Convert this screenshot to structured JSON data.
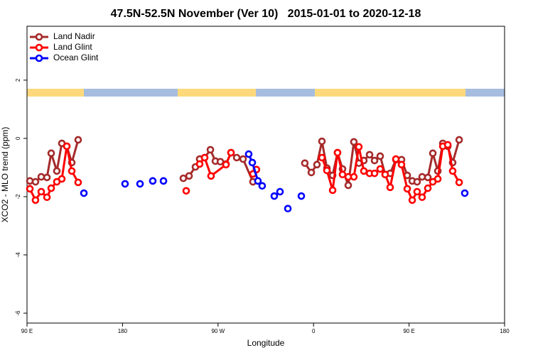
{
  "chart_data": {
    "type": "line",
    "title": "47.5N-52.5N November (Ver 10)   2015-01-01 to 2020-12-18",
    "xlabel": "Longitude",
    "ylabel": "XCO2 - MLO trend (ppm)",
    "xlim": [
      90,
      540
    ],
    "ylim": [
      -6.34,
      3.85
    ],
    "xticks": [
      {
        "value": 90,
        "label": "90 E"
      },
      {
        "value": 180,
        "label": "180"
      },
      {
        "value": 270,
        "label": "90 W"
      },
      {
        "value": 360,
        "label": "0"
      },
      {
        "value": 450,
        "label": "90 E"
      },
      {
        "value": 540,
        "label": "180"
      }
    ],
    "yticks": [
      2,
      0,
      -2,
      -4,
      -6
    ],
    "legend": "top-left",
    "series": [
      {
        "name": "Land Nadir",
        "color": "#a52a2a",
        "x": [
          92.7,
          98.0,
          103.4,
          108.8,
          112.8,
          118.1,
          122.8,
          127.5,
          132.2,
          138.2,
          null,
          237.3,
          242.7,
          248.7,
          252.7,
          257.4,
          262.8,
          267.5,
          272.2,
          277.5,
          282.2,
          287.6,
          293.6,
          302.9,
          null,
          351.8,
          357.9,
          363.2,
          367.9,
          372.6,
          378.0,
          382.6,
          387.3,
          392.7,
          398.0,
          402.7,
          407.4,
          412.8,
          417.5,
          422.8,
          427.5,
          432.2,
          437.6,
          442.9,
          448.3,
          453.0,
          457.6,
          462.3,
          467.7,
          472.4,
          477.1,
          481.8,
          486.5,
          491.1,
          497.2
        ],
        "values": [
          -1.46,
          -1.49,
          -1.32,
          -1.34,
          -0.51,
          -1.12,
          -0.17,
          -0.27,
          -0.83,
          -0.05,
          null,
          -1.37,
          -1.29,
          -0.98,
          -0.71,
          -0.66,
          -0.39,
          -0.78,
          -0.8,
          -0.88,
          -0.49,
          -0.66,
          -0.71,
          -1.49,
          null,
          -0.85,
          -1.17,
          -0.9,
          -0.1,
          -1.02,
          -1.27,
          -0.49,
          -1.05,
          -1.61,
          -0.12,
          -0.85,
          -0.76,
          -0.56,
          -0.76,
          -0.61,
          -1.24,
          -1.2,
          -0.73,
          -0.73,
          -1.27,
          -1.46,
          -1.49,
          -1.32,
          -1.34,
          -0.51,
          -1.12,
          -0.17,
          -0.27,
          -0.83,
          -0.05
        ]
      },
      {
        "name": "Land Glint",
        "color": "#ff0000",
        "x": [
          92.7,
          98.0,
          103.4,
          108.8,
          112.8,
          118.1,
          122.8,
          127.5,
          132.2,
          138.2,
          null,
          240.0,
          null,
          252.7,
          257.4,
          263.4,
          277.5,
          282.2,
          null,
          302.9,
          306.2,
          null,
          367.9,
          372.6,
          378.0,
          382.6,
          387.3,
          392.7,
          398.0,
          402.7,
          407.4,
          412.8,
          417.5,
          422.8,
          427.5,
          432.2,
          437.6,
          442.9,
          448.3,
          453.0,
          457.6,
          462.3,
          467.7,
          472.4,
          477.1,
          481.8,
          486.5,
          491.1,
          497.2
        ],
        "values": [
          -1.73,
          -2.12,
          -1.83,
          -2.02,
          -1.71,
          -1.49,
          -1.39,
          -0.27,
          -1.12,
          -1.51,
          null,
          -1.8,
          null,
          -0.88,
          -0.66,
          -1.29,
          -0.9,
          -0.49,
          null,
          -1.22,
          -1.07,
          null,
          -0.66,
          -1.1,
          -1.78,
          -0.49,
          -1.24,
          -1.32,
          -1.32,
          -0.29,
          -1.12,
          -1.2,
          -1.2,
          -1.05,
          -1.24,
          -1.68,
          -0.71,
          -0.9,
          -1.73,
          -2.12,
          -1.83,
          -2.02,
          -1.71,
          -1.49,
          -1.39,
          -0.27,
          -0.22,
          -1.12,
          -1.51
        ]
      },
      {
        "name": "Ocean Glint",
        "color": "#0000ff",
        "x": [
          143.6,
          null,
          182.4,
          null,
          196.5,
          null,
          208.5,
          null,
          218.6,
          null,
          298.9,
          302.3,
          307.6,
          311.6,
          null,
          323.0,
          null,
          328.4,
          null,
          335.8,
          null,
          348.5,
          null,
          502.5
        ],
        "values": [
          -1.88,
          null,
          -1.56,
          null,
          -1.56,
          null,
          -1.46,
          null,
          -1.46,
          null,
          -0.54,
          -0.83,
          -1.46,
          -1.63,
          null,
          -1.98,
          null,
          -1.83,
          null,
          -2.41,
          null,
          -1.98,
          null,
          -1.88
        ]
      }
    ]
  }
}
